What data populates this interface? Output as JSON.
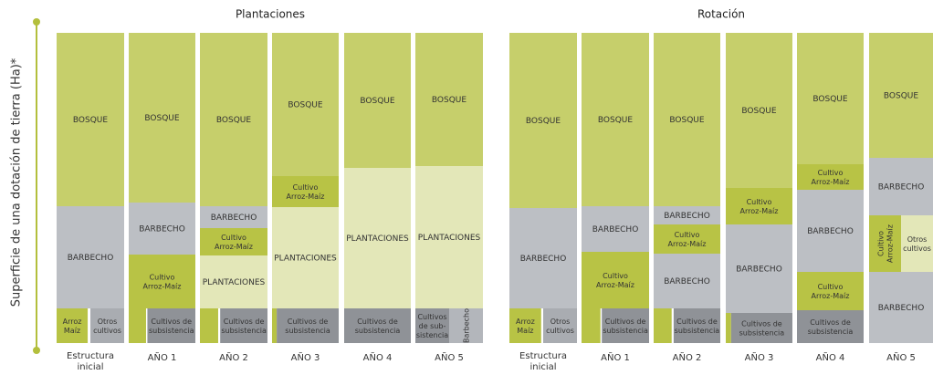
{
  "axis_label": "Superficie de una dotación de tierra (Ha)*",
  "panels": [
    {
      "title": "Plantaciones",
      "columns": [
        {
          "label": [
            "Estructura",
            "inicial"
          ],
          "blocks": [
            {
              "lines": [
                "BOSQUE"
              ]
            },
            {
              "lines": [
                "BARBECHO"
              ]
            },
            {
              "lines": [
                "Arroz",
                "Maíz"
              ]
            },
            {
              "lines": [
                "Otros",
                "cultivos"
              ]
            }
          ]
        },
        {
          "label": [
            "AÑO 1"
          ],
          "blocks": [
            {
              "lines": [
                "BOSQUE"
              ]
            },
            {
              "lines": [
                "BARBECHO"
              ]
            },
            {
              "lines": [
                "Cultivo",
                "Arroz-Maíz"
              ]
            },
            {
              "lines": [
                "Cultivos de",
                "subsistencia"
              ]
            }
          ]
        },
        {
          "label": [
            "AÑO 2"
          ],
          "blocks": [
            {
              "lines": [
                "BOSQUE"
              ]
            },
            {
              "lines": [
                "BARBECHO"
              ]
            },
            {
              "lines": [
                "Cultivo",
                "Arroz-Maíz"
              ]
            },
            {
              "lines": [
                "PLANTACIONES"
              ]
            },
            {
              "lines": [
                "Cultivos de",
                "subsistencia"
              ]
            }
          ]
        },
        {
          "label": [
            "AÑO 3"
          ],
          "blocks": [
            {
              "lines": [
                "BOSQUE"
              ]
            },
            {
              "lines": [
                "Cultivo",
                "Arroz-Maíz"
              ]
            },
            {
              "lines": [
                "PLANTACIONES"
              ]
            },
            {
              "lines": [
                "Cultivos de",
                "subsistencia"
              ]
            }
          ]
        },
        {
          "label": [
            "AÑO 4"
          ],
          "blocks": [
            {
              "lines": [
                "BOSQUE"
              ]
            },
            {
              "lines": [
                "PLANTACIONES"
              ]
            },
            {
              "lines": [
                "Cultivos de",
                "subsistencia"
              ]
            }
          ]
        },
        {
          "label": [
            "AÑO 5"
          ],
          "blocks": [
            {
              "lines": [
                "BOSQUE"
              ]
            },
            {
              "lines": [
                "PLANTACIONES"
              ]
            },
            {
              "lines": [
                "Cultivos",
                "de sub-",
                "sistencia"
              ]
            },
            {
              "lines": [
                "Barbecho"
              ]
            }
          ]
        }
      ]
    },
    {
      "title": "Rotación",
      "columns": [
        {
          "label": [
            "Estructura",
            "inicial"
          ],
          "blocks": [
            {
              "lines": [
                "BOSQUE"
              ]
            },
            {
              "lines": [
                "BARBECHO"
              ]
            },
            {
              "lines": [
                "Arroz",
                "Maíz"
              ]
            },
            {
              "lines": [
                "Otros",
                "cultivos"
              ]
            }
          ]
        },
        {
          "label": [
            "AÑO 1"
          ],
          "blocks": [
            {
              "lines": [
                "BOSQUE"
              ]
            },
            {
              "lines": [
                "BARBECHO"
              ]
            },
            {
              "lines": [
                "Cultivo",
                "Arroz-Maíz"
              ]
            },
            {
              "lines": [
                "Cultivos de",
                "subsistencia"
              ]
            }
          ]
        },
        {
          "label": [
            "AÑO 2"
          ],
          "blocks": [
            {
              "lines": [
                "BOSQUE"
              ]
            },
            {
              "lines": [
                "BARBECHO"
              ]
            },
            {
              "lines": [
                "Cultivo",
                "Arroz-Maíz"
              ]
            },
            {
              "lines": [
                "BARBECHO"
              ]
            },
            {
              "lines": [
                "Cultivos de",
                "subsistencia"
              ]
            }
          ]
        },
        {
          "label": [
            "AÑO 3"
          ],
          "blocks": [
            {
              "lines": [
                "BOSQUE"
              ]
            },
            {
              "lines": [
                "Cultivo",
                "Arroz-Maíz"
              ]
            },
            {
              "lines": [
                "BARBECHO"
              ]
            },
            {
              "lines": [
                "Cultivos de",
                "subsistencia"
              ]
            }
          ]
        },
        {
          "label": [
            "AÑO 4"
          ],
          "blocks": [
            {
              "lines": [
                "BOSQUE"
              ]
            },
            {
              "lines": [
                "Cultivo",
                "Arroz-Maíz"
              ]
            },
            {
              "lines": [
                "BARBECHO"
              ]
            },
            {
              "lines": [
                "Cultivo",
                "Arroz-Maíz"
              ]
            },
            {
              "lines": [
                "Cultivos de",
                "subsistencia"
              ]
            }
          ]
        },
        {
          "label": [
            "AÑO 5"
          ],
          "blocks": [
            {
              "lines": [
                "BOSQUE"
              ]
            },
            {
              "lines": [
                "BARBECHO"
              ]
            },
            {
              "lines": [
                "Cultivo",
                "Arroz-Maíz"
              ]
            },
            {
              "lines": [
                "Otros",
                "cultivos"
              ]
            },
            {
              "lines": [
                "BARBECHO"
              ]
            }
          ]
        }
      ]
    }
  ]
}
